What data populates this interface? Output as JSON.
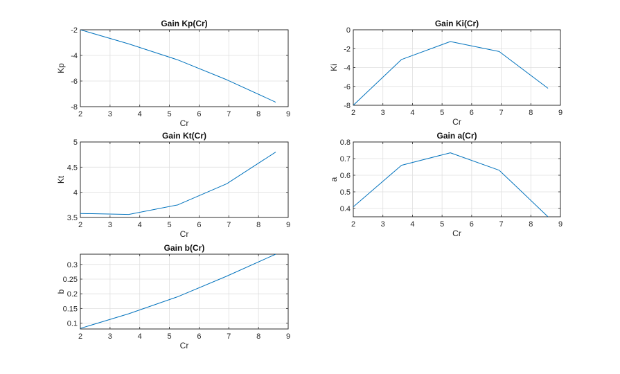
{
  "chart_data": [
    {
      "type": "line",
      "title": "Gain Kp(Cr)",
      "xlabel": "Cr",
      "ylabel": "Kp",
      "xlim": [
        2,
        9
      ],
      "ylim": [
        -8,
        -2
      ],
      "xticks": [
        2,
        3,
        4,
        5,
        6,
        7,
        8,
        9
      ],
      "yticks": [
        -8,
        -6,
        -4,
        -2
      ],
      "grid": true,
      "series": [
        {
          "x": [
            2,
            3.63,
            5.28,
            6.93,
            8.58
          ],
          "y": [
            -2.0,
            -3.1,
            -4.35,
            -5.9,
            -7.65
          ]
        }
      ]
    },
    {
      "type": "line",
      "title": "Gain Ki(Cr)",
      "xlabel": "Cr",
      "ylabel": "Ki",
      "xlim": [
        2,
        9
      ],
      "ylim": [
        -8,
        0
      ],
      "xticks": [
        2,
        3,
        4,
        5,
        6,
        7,
        8,
        9
      ],
      "yticks": [
        -8,
        -6,
        -4,
        -2,
        0
      ],
      "grid": true,
      "series": [
        {
          "x": [
            2,
            3.63,
            5.28,
            6.93,
            8.58
          ],
          "y": [
            -8.0,
            -3.15,
            -1.25,
            -2.3,
            -6.2
          ]
        }
      ]
    },
    {
      "type": "line",
      "title": "Gain Kt(Cr)",
      "xlabel": "Cr",
      "ylabel": "Kt",
      "xlim": [
        2,
        9
      ],
      "ylim": [
        3.5,
        5
      ],
      "xticks": [
        2,
        3,
        4,
        5,
        6,
        7,
        8,
        9
      ],
      "yticks": [
        3.5,
        4,
        4.5,
        5
      ],
      "grid": true,
      "series": [
        {
          "x": [
            2,
            3.63,
            5.28,
            6.93,
            8.58
          ],
          "y": [
            3.58,
            3.56,
            3.75,
            4.17,
            4.8
          ]
        }
      ]
    },
    {
      "type": "line",
      "title": "Gain a(Cr)",
      "xlabel": "Cr",
      "ylabel": "a",
      "xlim": [
        2,
        9
      ],
      "ylim": [
        0.35,
        0.8
      ],
      "xticks": [
        2,
        3,
        4,
        5,
        6,
        7,
        8,
        9
      ],
      "yticks": [
        0.4,
        0.5,
        0.6,
        0.7,
        0.8
      ],
      "grid": true,
      "series": [
        {
          "x": [
            2,
            3.63,
            5.28,
            6.93,
            8.58
          ],
          "y": [
            0.41,
            0.66,
            0.735,
            0.63,
            0.35
          ]
        }
      ]
    },
    {
      "type": "line",
      "title": "Gain b(Cr)",
      "xlabel": "Cr",
      "ylabel": "b",
      "xlim": [
        2,
        9
      ],
      "ylim": [
        0.08,
        0.335
      ],
      "xticks": [
        2,
        3,
        4,
        5,
        6,
        7,
        8,
        9
      ],
      "yticks": [
        0.1,
        0.15,
        0.2,
        0.25,
        0.3
      ],
      "grid": true,
      "series": [
        {
          "x": [
            2,
            3.63,
            5.28,
            6.93,
            8.58
          ],
          "y": [
            0.082,
            0.132,
            0.19,
            0.26,
            0.335
          ]
        }
      ]
    }
  ],
  "colors": {
    "line": "#0072bd",
    "axis": "#262626",
    "grid": "#dfdfdf"
  }
}
